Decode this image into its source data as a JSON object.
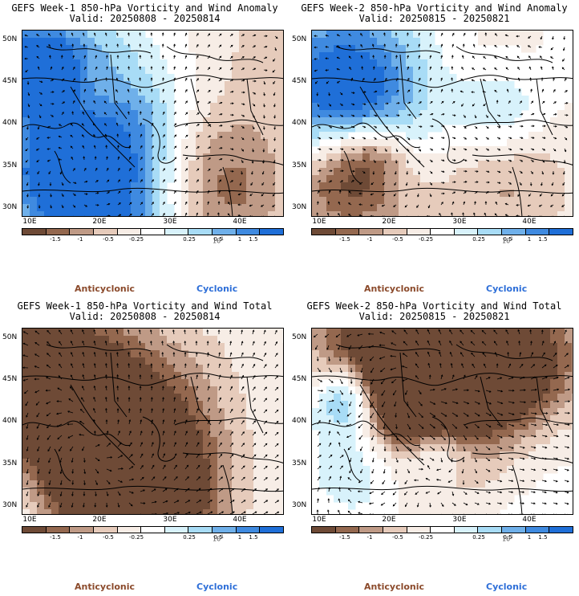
{
  "panels": [
    {
      "title_line1": "GEFS Week-1 850-hPa Vorticity and Wind Anomaly",
      "title_line2": "Valid: 20250808 - 20250814",
      "variant": "anomaly",
      "seed": 11
    },
    {
      "title_line1": "GEFS Week-2 850-hPa Vorticity and Wind Anomaly",
      "title_line2": "Valid: 20250815 - 20250821",
      "variant": "anomaly",
      "seed": 23
    },
    {
      "title_line1": "GEFS Week-1 850-hPa Vorticity and Wind Total",
      "title_line2": "Valid: 20250808 - 20250814",
      "variant": "total",
      "seed": 37
    },
    {
      "title_line1": "GEFS Week-2 850-hPa Vorticity and Wind Total",
      "title_line2": "Valid: 20250815 - 20250821",
      "variant": "total",
      "seed": 53
    }
  ],
  "lat_ticks": [
    "50N",
    "45N",
    "40N",
    "35N",
    "30N"
  ],
  "lon_ticks": [
    "10E",
    "20E",
    "30E",
    "40E"
  ],
  "colorbar": {
    "colors": [
      "#6e4a36",
      "#94684f",
      "#bf9a86",
      "#e6cbbb",
      "#f7ede6",
      "#ffffff",
      "#d8f2fb",
      "#a8dcf6",
      "#6fb0ea",
      "#3f8ae0",
      "#1f6fd8"
    ],
    "labels": [
      "-1.5",
      "-1",
      "-0.5",
      "-0.25",
      "0.25",
      "0.5",
      "1",
      "1.5"
    ],
    "scale_label": "10",
    "scale_exponent": "1"
  },
  "legend": {
    "anticyclonic": "Anticyclonic",
    "cyclonic": "Cyclonic",
    "anticyclonic_color": "#8b4a2b",
    "cyclonic_color": "#2e6fd8"
  }
}
